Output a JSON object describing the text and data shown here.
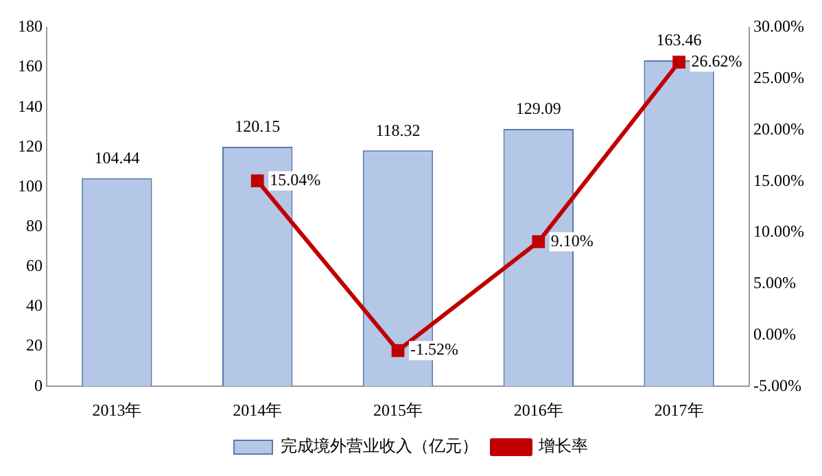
{
  "chart_data": {
    "type": "bar",
    "categories": [
      "2013年",
      "2014年",
      "2015年",
      "2016年",
      "2017年"
    ],
    "series": [
      {
        "name": "完成境外营业收入（亿元）",
        "color": "#b4c7e7",
        "values": [
          104.44,
          120.15,
          118.32,
          129.09,
          163.46
        ],
        "value_labels": [
          "104.44",
          "120.15",
          "118.32",
          "129.09",
          "163.46"
        ]
      },
      {
        "name": "增长率",
        "type": "line",
        "axis": "y2",
        "color": "#c00000",
        "values": [
          null,
          15.04,
          -1.52,
          9.1,
          26.62
        ],
        "value_labels": [
          null,
          "15.04%",
          "-1.52%",
          "9.10%",
          "26.62%"
        ]
      }
    ],
    "ylim": [
      0,
      180
    ],
    "yticks": [
      0,
      20,
      40,
      60,
      80,
      100,
      120,
      140,
      160,
      180
    ],
    "y2lim": [
      -5,
      30
    ],
    "y2ticks": [
      {
        "value": -5,
        "label": "-5.00%"
      },
      {
        "value": 0,
        "label": "0.00%"
      },
      {
        "value": 5,
        "label": "5.00%"
      },
      {
        "value": 10,
        "label": "10.00%"
      },
      {
        "value": 15,
        "label": "15.00%"
      },
      {
        "value": 20,
        "label": "20.00%"
      },
      {
        "value": 25,
        "label": "25.00%"
      },
      {
        "value": 30,
        "label": "30.00%"
      }
    ],
    "legend": "bottom",
    "marker": "square",
    "line_style": "solid"
  }
}
